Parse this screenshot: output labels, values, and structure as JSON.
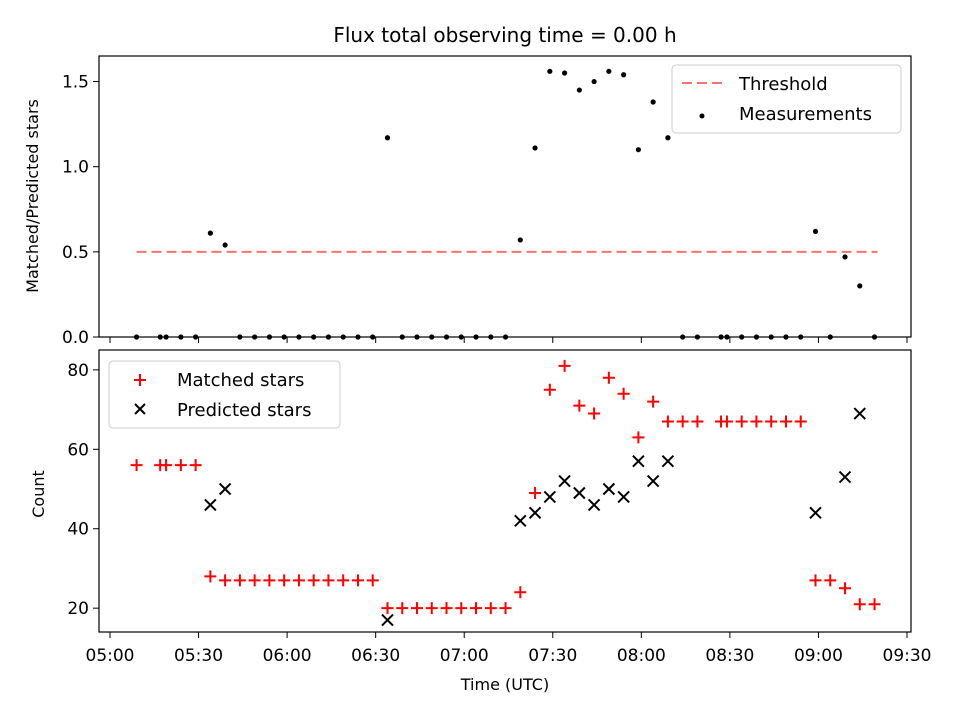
{
  "chart_data": [
    {
      "type": "scatter",
      "title": "Flux total observing time = 0.00 h",
      "xlabel": "",
      "ylabel": "Matched/Predicted stars",
      "ylim": [
        0,
        1.65
      ],
      "y_ticks": [
        "0.0",
        "0.5",
        "1.0",
        "1.5"
      ],
      "legend_position": "top-right",
      "threshold": {
        "name": "Threshold",
        "value": 0.5,
        "x_start": "05:09",
        "x_end": "09:20",
        "color": "#ff7070"
      },
      "series": [
        {
          "name": "Measurements",
          "color": "#000000",
          "x": [
            "05:09",
            "05:17",
            "05:19",
            "05:24",
            "05:29",
            "05:34",
            "05:39",
            "05:44",
            "05:49",
            "05:54",
            "05:59",
            "06:04",
            "06:09",
            "06:14",
            "06:19",
            "06:24",
            "06:29",
            "06:34",
            "06:39",
            "06:44",
            "06:49",
            "06:54",
            "06:59",
            "07:04",
            "07:09",
            "07:14",
            "07:19",
            "07:24",
            "07:29",
            "07:34",
            "07:39",
            "07:44",
            "07:49",
            "07:54",
            "07:59",
            "08:04",
            "08:09",
            "08:14",
            "08:19",
            "08:27",
            "08:29",
            "08:34",
            "08:39",
            "08:44",
            "08:49",
            "08:54",
            "08:59",
            "09:04",
            "09:09",
            "09:14",
            "09:19"
          ],
          "y": [
            0,
            0,
            0,
            0,
            0,
            0.61,
            0.54,
            0,
            0,
            0,
            0,
            0,
            0,
            0,
            0,
            0,
            0,
            1.17,
            0,
            0,
            0,
            0,
            0,
            0,
            0,
            0,
            0.57,
            1.11,
            1.56,
            1.55,
            1.45,
            1.5,
            1.56,
            1.54,
            1.1,
            1.38,
            1.17,
            0,
            0,
            0,
            0,
            0,
            0,
            0,
            0,
            0,
            0.62,
            0,
            0.47,
            0.3,
            0
          ]
        }
      ]
    },
    {
      "type": "scatter",
      "title": "",
      "xlabel": "Time (UTC)",
      "ylabel": "Count",
      "ylim": [
        14,
        85
      ],
      "y_ticks": [
        "20",
        "40",
        "60",
        "80"
      ],
      "x_ticks": [
        "05:00",
        "05:30",
        "06:00",
        "06:30",
        "07:00",
        "07:30",
        "08:00",
        "08:30",
        "09:00",
        "09:30"
      ],
      "legend_position": "top-left",
      "series": [
        {
          "name": "Matched stars",
          "marker": "+",
          "color": "#ff0000",
          "x": [
            "05:09",
            "05:17",
            "05:19",
            "05:24",
            "05:29",
            "05:34",
            "05:39",
            "05:44",
            "05:49",
            "05:54",
            "05:59",
            "06:04",
            "06:09",
            "06:14",
            "06:19",
            "06:24",
            "06:29",
            "06:34",
            "06:39",
            "06:44",
            "06:49",
            "06:54",
            "06:59",
            "07:04",
            "07:09",
            "07:14",
            "07:19",
            "07:24",
            "07:29",
            "07:34",
            "07:39",
            "07:44",
            "07:49",
            "07:54",
            "07:59",
            "08:04",
            "08:09",
            "08:14",
            "08:19",
            "08:27",
            "08:29",
            "08:34",
            "08:39",
            "08:44",
            "08:49",
            "08:54",
            "08:59",
            "09:04",
            "09:09",
            "09:14",
            "09:19"
          ],
          "y": [
            56,
            56,
            56,
            56,
            56,
            28,
            27,
            27,
            27,
            27,
            27,
            27,
            27,
            27,
            27,
            27,
            27,
            20,
            20,
            20,
            20,
            20,
            20,
            20,
            20,
            20,
            24,
            49,
            75,
            81,
            71,
            69,
            78,
            74,
            63,
            72,
            67,
            67,
            67,
            67,
            67,
            67,
            67,
            67,
            67,
            67,
            27,
            27,
            25,
            21,
            21
          ]
        },
        {
          "name": "Predicted stars",
          "marker": "x",
          "color": "#000000",
          "x": [
            "05:34",
            "05:39",
            "06:34",
            "07:19",
            "07:24",
            "07:29",
            "07:34",
            "07:39",
            "07:44",
            "07:49",
            "07:54",
            "07:59",
            "08:04",
            "08:09",
            "08:59",
            "09:09",
            "09:14"
          ],
          "y": [
            46,
            50,
            17,
            42,
            44,
            48,
            52,
            49,
            46,
            50,
            48,
            57,
            52,
            57,
            44,
            53,
            69
          ]
        }
      ]
    }
  ]
}
